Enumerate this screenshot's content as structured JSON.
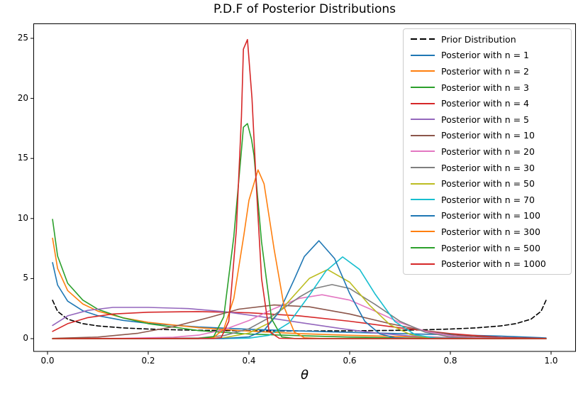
{
  "title": "P.D.F of Posterior Distributions",
  "axes": {
    "x_label": "θ",
    "x_ticks": [
      "0.0",
      "0.2",
      "0.4",
      "0.6",
      "0.8",
      "1.0"
    ],
    "x_tick_values": [
      0,
      0.2,
      0.4,
      0.6,
      0.8,
      1.0
    ],
    "y_ticks": [
      "0",
      "5",
      "10",
      "15",
      "20",
      "25"
    ],
    "y_tick_values": [
      0,
      5,
      10,
      15,
      20,
      25
    ]
  },
  "legend": {
    "position": "upper right"
  },
  "chart_data": {
    "type": "line",
    "title": "P.D.F of Posterior Distributions",
    "xlabel": "θ",
    "ylabel": "",
    "xlim": [
      0,
      1
    ],
    "ylim": [
      0,
      25
    ],
    "grid": false,
    "legend_position": "upper right",
    "series": [
      {
        "name": "Prior Distribution",
        "color": "#000000",
        "dash": true,
        "points": [
          [
            0.01,
            3.19
          ],
          [
            0.02,
            2.27
          ],
          [
            0.04,
            1.62
          ],
          [
            0.07,
            1.25
          ],
          [
            0.1,
            1.06
          ],
          [
            0.15,
            0.89
          ],
          [
            0.2,
            0.8
          ],
          [
            0.25,
            0.74
          ],
          [
            0.3,
            0.69
          ],
          [
            0.4,
            0.65
          ],
          [
            0.5,
            0.64
          ],
          [
            0.6,
            0.65
          ],
          [
            0.7,
            0.69
          ],
          [
            0.75,
            0.74
          ],
          [
            0.8,
            0.8
          ],
          [
            0.85,
            0.89
          ],
          [
            0.9,
            1.06
          ],
          [
            0.93,
            1.25
          ],
          [
            0.96,
            1.62
          ],
          [
            0.98,
            2.27
          ],
          [
            0.99,
            3.19
          ]
        ]
      },
      {
        "name": "Posterior with n = 1",
        "color": "#1f77b4",
        "dash": false,
        "points": [
          [
            0.01,
            6.33
          ],
          [
            0.02,
            4.46
          ],
          [
            0.04,
            3.12
          ],
          [
            0.07,
            2.32
          ],
          [
            0.1,
            1.91
          ],
          [
            0.15,
            1.52
          ],
          [
            0.2,
            1.27
          ],
          [
            0.3,
            0.97
          ],
          [
            0.4,
            0.78
          ],
          [
            0.5,
            0.64
          ],
          [
            0.6,
            0.52
          ],
          [
            0.7,
            0.42
          ],
          [
            0.8,
            0.32
          ],
          [
            0.9,
            0.21
          ],
          [
            0.99,
            0.06
          ]
        ]
      },
      {
        "name": "Posterior with n = 2",
        "color": "#ff7f0e",
        "dash": false,
        "points": [
          [
            0.01,
            8.36
          ],
          [
            0.02,
            5.84
          ],
          [
            0.04,
            4.0
          ],
          [
            0.07,
            2.89
          ],
          [
            0.1,
            2.29
          ],
          [
            0.15,
            1.74
          ],
          [
            0.2,
            1.36
          ],
          [
            0.3,
            0.91
          ],
          [
            0.4,
            0.62
          ],
          [
            0.5,
            0.42
          ],
          [
            0.6,
            0.28
          ],
          [
            0.7,
            0.17
          ],
          [
            0.8,
            0.08
          ],
          [
            0.9,
            0.03
          ],
          [
            0.99,
            0.0
          ]
        ]
      },
      {
        "name": "Posterior with n = 3",
        "color": "#2ca02c",
        "dash": false,
        "points": [
          [
            0.01,
            9.93
          ],
          [
            0.02,
            6.88
          ],
          [
            0.04,
            4.61
          ],
          [
            0.07,
            3.21
          ],
          [
            0.1,
            2.44
          ],
          [
            0.15,
            1.72
          ],
          [
            0.2,
            1.25
          ],
          [
            0.3,
            0.67
          ],
          [
            0.4,
            0.38
          ],
          [
            0.5,
            0.25
          ],
          [
            0.6,
            0.13
          ],
          [
            0.7,
            0.06
          ],
          [
            0.8,
            0.02
          ],
          [
            0.9,
            0.01
          ],
          [
            0.99,
            0.0
          ]
        ]
      },
      {
        "name": "Posterior with n = 4",
        "color": "#d62728",
        "dash": false,
        "points": [
          [
            0.01,
            0.6
          ],
          [
            0.04,
            1.25
          ],
          [
            0.08,
            1.75
          ],
          [
            0.13,
            2.05
          ],
          [
            0.2,
            2.2
          ],
          [
            0.3,
            2.25
          ],
          [
            0.4,
            2.15
          ],
          [
            0.5,
            1.9
          ],
          [
            0.6,
            1.45
          ],
          [
            0.7,
            0.9
          ],
          [
            0.8,
            0.42
          ],
          [
            0.9,
            0.1
          ],
          [
            0.99,
            0.01
          ]
        ]
      },
      {
        "name": "Posterior with n = 5",
        "color": "#9467bd",
        "dash": false,
        "points": [
          [
            0.01,
            1.1
          ],
          [
            0.04,
            1.9
          ],
          [
            0.08,
            2.35
          ],
          [
            0.13,
            2.6
          ],
          [
            0.2,
            2.6
          ],
          [
            0.28,
            2.5
          ],
          [
            0.35,
            2.25
          ],
          [
            0.42,
            1.85
          ],
          [
            0.5,
            1.35
          ],
          [
            0.58,
            0.85
          ],
          [
            0.65,
            0.48
          ],
          [
            0.72,
            0.22
          ],
          [
            0.8,
            0.07
          ],
          [
            0.9,
            0.01
          ],
          [
            0.99,
            0.0
          ]
        ]
      },
      {
        "name": "Posterior with n = 10",
        "color": "#8c564b",
        "dash": false,
        "points": [
          [
            0.01,
            0.02
          ],
          [
            0.1,
            0.13
          ],
          [
            0.18,
            0.45
          ],
          [
            0.25,
            1.0
          ],
          [
            0.32,
            1.75
          ],
          [
            0.38,
            2.45
          ],
          [
            0.45,
            2.8
          ],
          [
            0.52,
            2.65
          ],
          [
            0.6,
            2.05
          ],
          [
            0.68,
            1.25
          ],
          [
            0.75,
            0.65
          ],
          [
            0.82,
            0.25
          ],
          [
            0.9,
            0.05
          ],
          [
            0.99,
            0.0
          ]
        ]
      },
      {
        "name": "Posterior with n = 20",
        "color": "#e377c2",
        "dash": false,
        "points": [
          [
            0.01,
            0.0
          ],
          [
            0.15,
            0.03
          ],
          [
            0.25,
            0.12
          ],
          [
            0.3,
            0.29
          ],
          [
            0.35,
            0.74
          ],
          [
            0.4,
            1.51
          ],
          [
            0.45,
            2.5
          ],
          [
            0.5,
            3.35
          ],
          [
            0.545,
            3.65
          ],
          [
            0.6,
            3.21
          ],
          [
            0.65,
            2.3
          ],
          [
            0.7,
            1.33
          ],
          [
            0.75,
            0.62
          ],
          [
            0.8,
            0.24
          ],
          [
            0.85,
            0.07
          ],
          [
            0.9,
            0.02
          ],
          [
            0.99,
            0.0
          ]
        ]
      },
      {
        "name": "Posterior with n = 30",
        "color": "#7f7f7f",
        "dash": false,
        "points": [
          [
            0.01,
            0.0
          ],
          [
            0.2,
            0.01
          ],
          [
            0.3,
            0.06
          ],
          [
            0.35,
            0.25
          ],
          [
            0.4,
            0.82
          ],
          [
            0.45,
            1.97
          ],
          [
            0.5,
            3.46
          ],
          [
            0.53,
            4.17
          ],
          [
            0.565,
            4.5
          ],
          [
            0.6,
            4.17
          ],
          [
            0.65,
            2.86
          ],
          [
            0.7,
            1.44
          ],
          [
            0.75,
            0.53
          ],
          [
            0.8,
            0.14
          ],
          [
            0.85,
            0.03
          ],
          [
            0.9,
            0.01
          ],
          [
            0.99,
            0.0
          ]
        ]
      },
      {
        "name": "Posterior with n = 50",
        "color": "#bcbd22",
        "dash": false,
        "points": [
          [
            0.01,
            0.0
          ],
          [
            0.3,
            0.01
          ],
          [
            0.35,
            0.07
          ],
          [
            0.4,
            0.46
          ],
          [
            0.44,
            1.3
          ],
          [
            0.48,
            3.15
          ],
          [
            0.52,
            5.02
          ],
          [
            0.556,
            5.75
          ],
          [
            0.6,
            4.7
          ],
          [
            0.64,
            2.76
          ],
          [
            0.68,
            1.16
          ],
          [
            0.72,
            0.35
          ],
          [
            0.76,
            0.08
          ],
          [
            0.8,
            0.01
          ],
          [
            0.9,
            0.0
          ],
          [
            0.99,
            0.0
          ]
        ]
      },
      {
        "name": "Posterior with n = 70",
        "color": "#17becf",
        "dash": false,
        "points": [
          [
            0.01,
            0.0
          ],
          [
            0.35,
            0.01
          ],
          [
            0.4,
            0.04
          ],
          [
            0.44,
            0.28
          ],
          [
            0.48,
            1.32
          ],
          [
            0.52,
            3.61
          ],
          [
            0.553,
            5.63
          ],
          [
            0.586,
            6.8
          ],
          [
            0.62,
            5.75
          ],
          [
            0.65,
            3.75
          ],
          [
            0.69,
            1.41
          ],
          [
            0.73,
            0.33
          ],
          [
            0.77,
            0.04
          ],
          [
            0.8,
            0.01
          ],
          [
            0.9,
            0.0
          ],
          [
            0.99,
            0.0
          ]
        ]
      },
      {
        "name": "Posterior with n = 100",
        "color": "#1f77b4",
        "dash": false,
        "points": [
          [
            0.01,
            0.0
          ],
          [
            0.35,
            0.01
          ],
          [
            0.4,
            0.15
          ],
          [
            0.43,
            0.69
          ],
          [
            0.46,
            2.22
          ],
          [
            0.49,
            4.94
          ],
          [
            0.51,
            6.84
          ],
          [
            0.539,
            8.15
          ],
          [
            0.57,
            6.67
          ],
          [
            0.6,
            3.76
          ],
          [
            0.63,
            1.45
          ],
          [
            0.66,
            0.39
          ],
          [
            0.69,
            0.07
          ],
          [
            0.73,
            0.01
          ],
          [
            0.9,
            0.0
          ],
          [
            0.99,
            0.0
          ]
        ]
      },
      {
        "name": "Posterior with n = 300",
        "color": "#ff7f0e",
        "dash": false,
        "points": [
          [
            0.01,
            0.0
          ],
          [
            0.3,
            0.01
          ],
          [
            0.33,
            0.11
          ],
          [
            0.35,
            0.79
          ],
          [
            0.37,
            3.35
          ],
          [
            0.39,
            8.64
          ],
          [
            0.4,
            11.52
          ],
          [
            0.418,
            14.05
          ],
          [
            0.43,
            12.89
          ],
          [
            0.45,
            7.44
          ],
          [
            0.47,
            2.61
          ],
          [
            0.49,
            0.55
          ],
          [
            0.51,
            0.07
          ],
          [
            0.54,
            0.01
          ],
          [
            0.7,
            0.0
          ],
          [
            0.99,
            0.0
          ]
        ]
      },
      {
        "name": "Posterior with n = 500",
        "color": "#2ca02c",
        "dash": false,
        "points": [
          [
            0.01,
            0.0
          ],
          [
            0.3,
            0.0
          ],
          [
            0.33,
            0.17
          ],
          [
            0.35,
            1.82
          ],
          [
            0.37,
            8.51
          ],
          [
            0.385,
            15.66
          ],
          [
            0.389,
            17.6
          ],
          [
            0.397,
            17.9
          ],
          [
            0.405,
            16.6
          ],
          [
            0.41,
            15.26
          ],
          [
            0.425,
            8.04
          ],
          [
            0.445,
            1.65
          ],
          [
            0.465,
            0.15
          ],
          [
            0.49,
            0.01
          ],
          [
            0.7,
            0.0
          ],
          [
            0.99,
            0.0
          ]
        ]
      },
      {
        "name": "Posterior with n = 1000",
        "color": "#d62728",
        "dash": false,
        "points": [
          [
            0.01,
            0.0
          ],
          [
            0.33,
            0.01
          ],
          [
            0.345,
            0.09
          ],
          [
            0.36,
            1.44
          ],
          [
            0.375,
            9.09
          ],
          [
            0.385,
            18.45
          ],
          [
            0.389,
            24.1
          ],
          [
            0.397,
            24.9
          ],
          [
            0.406,
            20.0
          ],
          [
            0.415,
            12.5
          ],
          [
            0.425,
            5.0
          ],
          [
            0.44,
            0.6
          ],
          [
            0.46,
            0.03
          ],
          [
            0.5,
            0.0
          ],
          [
            0.99,
            0.0
          ]
        ]
      }
    ]
  }
}
